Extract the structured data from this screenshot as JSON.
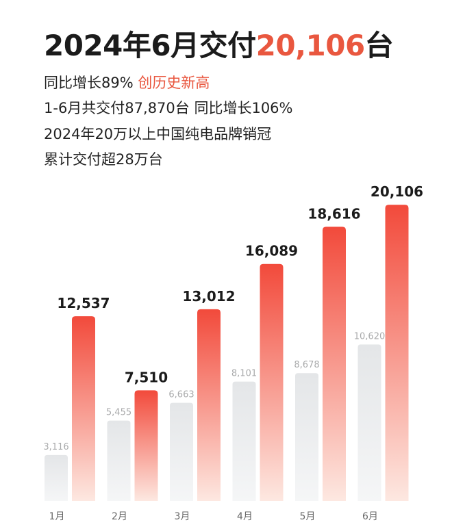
{
  "header": {
    "title_prefix": "2024年6月交付",
    "title_number": "20,106",
    "title_suffix": "台",
    "line1_text": "同比增长89%",
    "line1_accent": "创历史新高",
    "line2": "1-6月共交付87,870台 同比增长106%",
    "line3": "2024年20万以上中国纯电品牌销冠",
    "line4": "累计交付超28万台"
  },
  "colors": {
    "accent": "#e9573f",
    "bar_top": "#f24a3b",
    "bar_bottom": "#fde8e1",
    "grey_top": "#e4e6e8",
    "grey_bottom": "#f5f6f7",
    "grey_label": "#a9aaab",
    "value_label": "#1b1b1b"
  },
  "chart_data": {
    "type": "bar",
    "categories": [
      "1月",
      "2月",
      "3月",
      "4月",
      "5月",
      "6月"
    ],
    "series": [
      {
        "values": [
          3116,
          5455,
          6663,
          8101,
          8678,
          10620
        ],
        "labels": [
          "3,116",
          "5,455",
          "6,663",
          "8,101",
          "8,678",
          "10,620"
        ]
      },
      {
        "values": [
          12537,
          7510,
          13012,
          16089,
          18616,
          20106
        ],
        "labels": [
          "12,537",
          "7,510",
          "13,012",
          "16,089",
          "18,616",
          "20,106"
        ]
      }
    ],
    "title": "",
    "xlabel": "",
    "ylabel": "",
    "ylim": [
      0,
      21000
    ],
    "grid": false,
    "legend": "none"
  }
}
